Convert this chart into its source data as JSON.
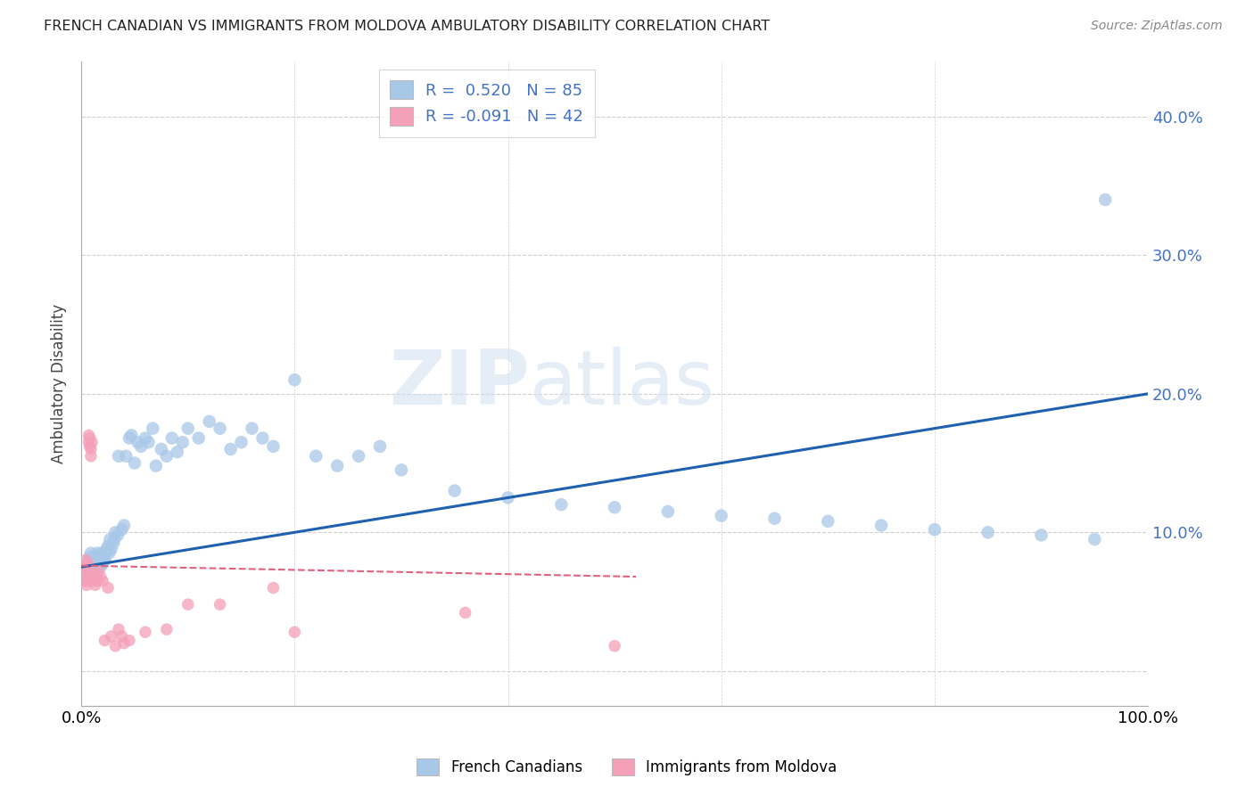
{
  "title": "FRENCH CANADIAN VS IMMIGRANTS FROM MOLDOVA AMBULATORY DISABILITY CORRELATION CHART",
  "source": "Source: ZipAtlas.com",
  "ylabel": "Ambulatory Disability",
  "xlim": [
    0.0,
    1.0
  ],
  "ylim": [
    -0.025,
    0.44
  ],
  "blue_R": "0.520",
  "blue_N": "85",
  "pink_R": "-0.091",
  "pink_N": "42",
  "blue_color": "#a8c8e8",
  "blue_line_color": "#2060b0",
  "pink_color": "#f4a0b8",
  "pink_line_color": "#e06080",
  "watermark_zip": "ZIP",
  "watermark_atlas": "atlas",
  "legend_label_blue": "French Canadians",
  "legend_label_pink": "Immigrants from Moldova",
  "blue_x": [
    0.004,
    0.005,
    0.006,
    0.007,
    0.007,
    0.008,
    0.008,
    0.009,
    0.009,
    0.01,
    0.01,
    0.011,
    0.011,
    0.012,
    0.012,
    0.013,
    0.013,
    0.014,
    0.015,
    0.015,
    0.016,
    0.016,
    0.017,
    0.018,
    0.019,
    0.02,
    0.021,
    0.022,
    0.023,
    0.024,
    0.025,
    0.026,
    0.027,
    0.028,
    0.03,
    0.031,
    0.032,
    0.034,
    0.035,
    0.038,
    0.04,
    0.042,
    0.045,
    0.047,
    0.05,
    0.053,
    0.056,
    0.06,
    0.063,
    0.067,
    0.07,
    0.075,
    0.08,
    0.085,
    0.09,
    0.095,
    0.1,
    0.11,
    0.12,
    0.13,
    0.14,
    0.15,
    0.16,
    0.17,
    0.18,
    0.2,
    0.22,
    0.24,
    0.26,
    0.28,
    0.3,
    0.35,
    0.4,
    0.45,
    0.5,
    0.55,
    0.6,
    0.65,
    0.7,
    0.75,
    0.8,
    0.85,
    0.9,
    0.95,
    0.96
  ],
  "blue_y": [
    0.074,
    0.068,
    0.072,
    0.076,
    0.08,
    0.07,
    0.082,
    0.075,
    0.085,
    0.072,
    0.078,
    0.068,
    0.08,
    0.075,
    0.082,
    0.072,
    0.078,
    0.08,
    0.075,
    0.085,
    0.078,
    0.082,
    0.08,
    0.075,
    0.085,
    0.082,
    0.078,
    0.08,
    0.085,
    0.088,
    0.09,
    0.085,
    0.095,
    0.088,
    0.092,
    0.095,
    0.1,
    0.098,
    0.155,
    0.102,
    0.105,
    0.155,
    0.168,
    0.17,
    0.15,
    0.165,
    0.162,
    0.168,
    0.165,
    0.175,
    0.148,
    0.16,
    0.155,
    0.168,
    0.158,
    0.165,
    0.175,
    0.168,
    0.18,
    0.175,
    0.16,
    0.165,
    0.175,
    0.168,
    0.162,
    0.21,
    0.155,
    0.148,
    0.155,
    0.162,
    0.145,
    0.13,
    0.125,
    0.12,
    0.118,
    0.115,
    0.112,
    0.11,
    0.108,
    0.105,
    0.102,
    0.1,
    0.098,
    0.095,
    0.34
  ],
  "pink_x": [
    0.002,
    0.002,
    0.003,
    0.003,
    0.004,
    0.004,
    0.005,
    0.005,
    0.006,
    0.006,
    0.007,
    0.007,
    0.008,
    0.008,
    0.009,
    0.009,
    0.01,
    0.01,
    0.011,
    0.012,
    0.013,
    0.014,
    0.015,
    0.016,
    0.018,
    0.02,
    0.022,
    0.025,
    0.028,
    0.032,
    0.035,
    0.038,
    0.04,
    0.045,
    0.06,
    0.08,
    0.1,
    0.13,
    0.18,
    0.2,
    0.36,
    0.5
  ],
  "pink_y": [
    0.068,
    0.072,
    0.065,
    0.075,
    0.07,
    0.08,
    0.062,
    0.075,
    0.065,
    0.078,
    0.165,
    0.17,
    0.162,
    0.168,
    0.16,
    0.155,
    0.165,
    0.068,
    0.065,
    0.07,
    0.062,
    0.068,
    0.065,
    0.072,
    0.068,
    0.065,
    0.022,
    0.06,
    0.025,
    0.018,
    0.03,
    0.025,
    0.02,
    0.022,
    0.028,
    0.03,
    0.048,
    0.048,
    0.06,
    0.028,
    0.042,
    0.018
  ],
  "blue_line_x0": 0.0,
  "blue_line_x1": 1.0,
  "blue_line_y0": 0.075,
  "blue_line_y1": 0.2,
  "pink_line_x0": 0.0,
  "pink_line_x1": 0.52,
  "pink_line_y0": 0.076,
  "pink_line_y1": 0.068
}
